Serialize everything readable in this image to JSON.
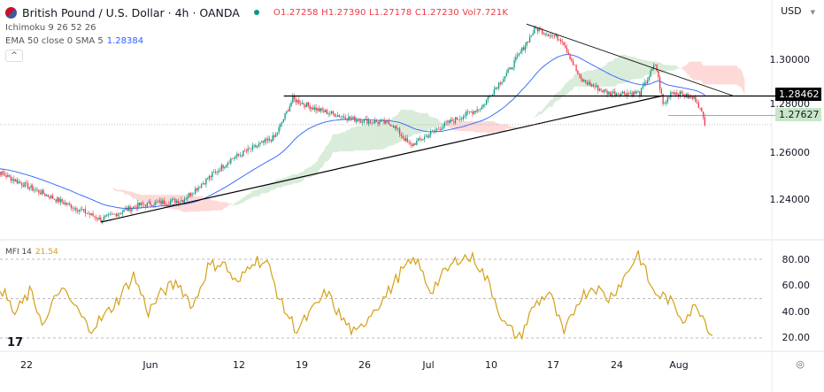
{
  "header": {
    "symbol_title": "British Pound / U.S. Dollar · 4h · OANDA",
    "open": "O1.27258",
    "high": "H1.27390",
    "low": "L1.27178",
    "close": "C1.27230",
    "volume": "Vol7.721K",
    "ichimoku": "Ichimoku 9 26 52 26",
    "ema": "EMA 50 close 0 SMA 5",
    "ema_value": "1.28384",
    "collapse_icon": "chevron-up",
    "market_status_color": "#089981"
  },
  "currency": "USD",
  "price_axis": {
    "labels": [
      "1.30000",
      "1.28000",
      "1.26000",
      "1.24000"
    ],
    "values": [
      1.3,
      1.28,
      1.26,
      1.24
    ],
    "horizontal_line_tag": "1.28462",
    "horizontal_line_value": 1.28462,
    "green_tag": "1.27627",
    "green_value": 1.27627,
    "last_close": 1.2723
  },
  "mfi": {
    "label": "MFI 14",
    "value": "21.54",
    "axis_labels": [
      "80.00",
      "60.00",
      "40.00",
      "20.00"
    ],
    "axis_values": [
      80,
      60,
      40,
      20
    ],
    "color": "#d4a017",
    "values": [
      60,
      38,
      55,
      30,
      58,
      45,
      27,
      36,
      50,
      68,
      40,
      56,
      62,
      44,
      74,
      78,
      60,
      80,
      77,
      45,
      26,
      40,
      55,
      35,
      22,
      40,
      52,
      70,
      80,
      56,
      70,
      82,
      80,
      60,
      30,
      20,
      45,
      55,
      22,
      50,
      60,
      50,
      65,
      85,
      55,
      50,
      35,
      45,
      22
    ]
  },
  "time_axis": {
    "labels": [
      "22",
      "Jun",
      "12",
      "19",
      "26",
      "Jul",
      "10",
      "17",
      "24",
      "Aug"
    ],
    "dates": [
      "2023-05-22",
      "2023-06-01",
      "2023-06-12",
      "2023-06-19",
      "2023-06-26",
      "2023-07-03",
      "2023-07-10",
      "2023-07-17",
      "2023-07-24",
      "2023-08-01"
    ]
  },
  "colors": {
    "up": "#089981",
    "down": "#f23645",
    "ema": "#2962ff",
    "cloud_bull": "#43a047",
    "cloud_bear": "#f44336"
  },
  "price_path": [
    [
      "2023-05-18",
      1.2537
    ],
    [
      "2023-05-22",
      1.246
    ],
    [
      "2023-05-28",
      1.2316
    ],
    [
      "2023-05-31",
      1.2377
    ],
    [
      "2023-06-05",
      1.24
    ],
    [
      "2023-06-11",
      1.2575
    ],
    [
      "2023-06-16",
      1.267
    ],
    [
      "2023-06-18",
      1.2833
    ],
    [
      "2023-06-21",
      1.2784
    ],
    [
      "2023-06-25",
      1.2745
    ],
    [
      "2023-06-29",
      1.2727
    ],
    [
      "2023-07-01",
      1.2632
    ],
    [
      "2023-07-05",
      1.2727
    ],
    [
      "2023-07-09",
      1.28
    ],
    [
      "2023-07-10",
      1.2859
    ],
    [
      "2023-07-12",
      1.2954
    ],
    [
      "2023-07-15",
      1.3137
    ],
    [
      "2023-07-18",
      1.3087
    ],
    [
      "2023-07-20",
      1.2916
    ],
    [
      "2023-07-23",
      1.2859
    ],
    [
      "2023-07-27",
      1.2859
    ],
    [
      "2023-07-29",
      1.2985
    ],
    [
      "2023-07-30",
      1.2802
    ],
    [
      "2023-07-31",
      1.2867
    ],
    [
      "2023-08-03",
      1.283
    ],
    [
      "2023-08-04",
      1.2723
    ]
  ],
  "drawings": {
    "support_line": [
      [
        "2023-05-28",
        1.2305
      ],
      [
        "2023-07-30",
        1.2848
      ]
    ],
    "resistance_line": [
      [
        "2023-07-14",
        1.3155
      ],
      [
        "2023-08-07",
        1.2848
      ]
    ],
    "horizontal_start": "2023-06-17"
  },
  "footer": {
    "tv_logo": "17"
  }
}
